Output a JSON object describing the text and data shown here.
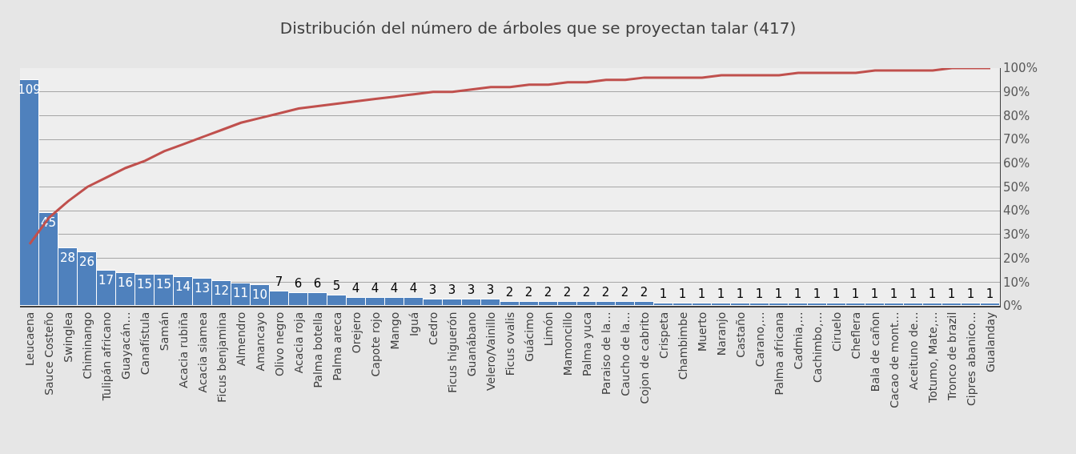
{
  "chart_data": {
    "type": "bar",
    "title": "Distribución del número de árboles que se proyectan talar (417)",
    "categories": [
      "Leucaena",
      "Sauce Costeño",
      "Swinglea",
      "Chiminango",
      "Tulipán africano",
      "Guayacán…",
      "Canafístula",
      "Samán",
      "Acacia rubiña",
      "Acacia siamea",
      "Ficus benjamina",
      "Almendro",
      "Amancayo",
      "Olivo negro",
      "Acacia roja",
      "Palma botella",
      "Palma areca",
      "Orejero",
      "Capote rojo",
      "Mango",
      "Iguá",
      "Cedro",
      "Ficus higuerón",
      "Guanábano",
      "Velero/Vainillo",
      "Ficus ovalis",
      "Guácimo",
      "Limón",
      "Mamoncillo",
      "Palma yuca",
      "Paraiso de la…",
      "Caucho de la…",
      "Cojon de cabrito",
      "Crispeta",
      "Chambimbe",
      "Muerto",
      "Naranjo",
      "Castaño",
      "Carano,…",
      "Palma africana",
      "Cadmia,…",
      "Cachimbo,…",
      "Ciruelo",
      "Cheflera",
      "Bala de cañon",
      "Cacao de mont…",
      "Aceituno de…",
      "Totumo, Mate,…",
      "Tronco de brazil",
      "Cipres abanico…",
      "Gualanday"
    ],
    "series": [
      {
        "color": "#4f81bd",
        "values": [
          109,
          45,
          28,
          26,
          17,
          16,
          15,
          15,
          14,
          13,
          12,
          11,
          10,
          7,
          6,
          6,
          5,
          4,
          4,
          4,
          4,
          3,
          3,
          3,
          3,
          2,
          2,
          2,
          2,
          2,
          2,
          2,
          2,
          1,
          1,
          1,
          1,
          1,
          1,
          1,
          1,
          1,
          1,
          1,
          1,
          1,
          1,
          1,
          1,
          1,
          1
        ],
        "value_labels": [
          "109",
          "45",
          "28",
          "26",
          "17",
          "16",
          "15",
          "15",
          "14",
          "13",
          "12",
          "11",
          "10",
          "7",
          "6",
          "6",
          "5",
          "4",
          "4",
          "4",
          "4",
          "3",
          "3",
          "3",
          "3",
          "2",
          "2",
          "2",
          "2",
          "2",
          "2",
          "2",
          "2",
          "1",
          "1",
          "1",
          "1",
          "1",
          "1",
          "1",
          "1",
          "1",
          "1",
          "1",
          "1",
          "1",
          "1",
          "1",
          "1",
          "1",
          "1"
        ]
      },
      {
        "type": "line",
        "axis": "y2",
        "color": "#c0504d",
        "values": [
          26,
          37,
          44,
          50,
          54,
          58,
          61,
          65,
          68,
          71,
          74,
          77,
          79,
          81,
          83,
          84,
          85,
          86,
          87,
          88,
          89,
          90,
          90,
          91,
          92,
          92,
          93,
          93,
          94,
          94,
          95,
          95,
          96,
          96,
          96,
          96,
          97,
          97,
          97,
          97,
          98,
          98,
          98,
          98,
          99,
          99,
          99,
          99,
          100,
          100,
          100
        ]
      }
    ],
    "y2lim": [
      0,
      100
    ],
    "y2ticks": [
      {
        "value": 0,
        "label": "0%"
      },
      {
        "value": 10,
        "label": "10%"
      },
      {
        "value": 20,
        "label": "20%"
      },
      {
        "value": 30,
        "label": "30%"
      },
      {
        "value": 40,
        "label": "40%"
      },
      {
        "value": 50,
        "label": "50%"
      },
      {
        "value": 60,
        "label": "60%"
      },
      {
        "value": 70,
        "label": "70%"
      },
      {
        "value": 80,
        "label": "80%"
      },
      {
        "value": 90,
        "label": "90%"
      },
      {
        "value": 100,
        "label": "100%"
      }
    ],
    "grid": "y",
    "legend": false,
    "marker": "none",
    "line_style": "solid"
  }
}
